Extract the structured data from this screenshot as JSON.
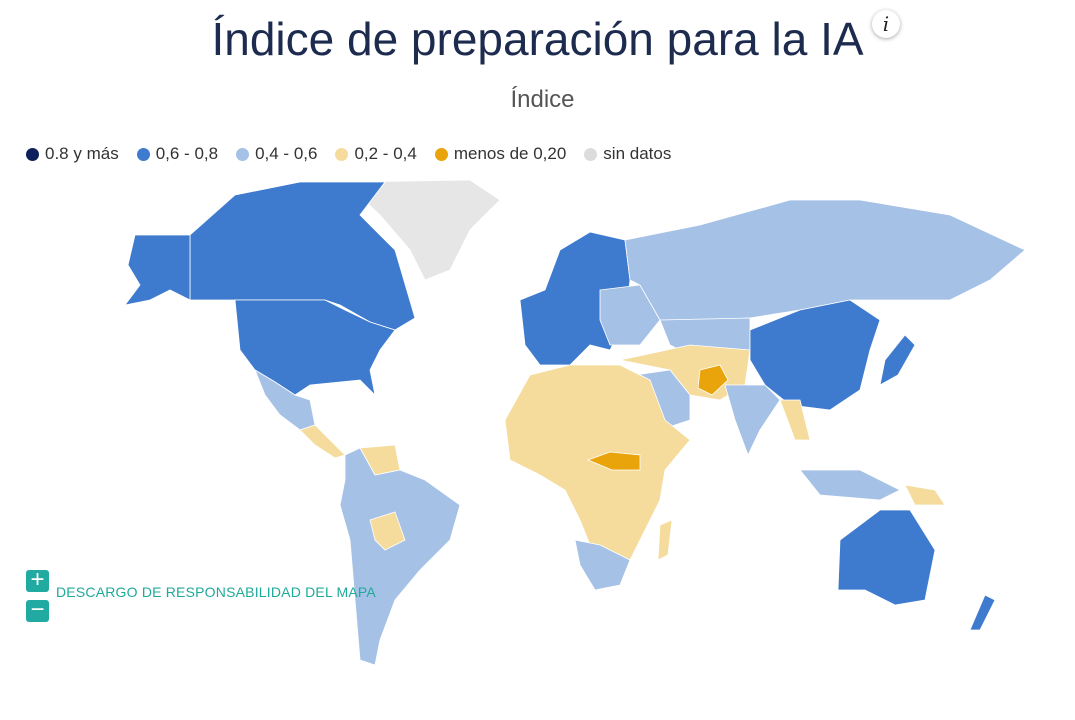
{
  "header": {
    "title": "Índice de preparación para la IA",
    "info_icon": "i",
    "subtitle": "Índice"
  },
  "legend": [
    {
      "label": "0.8 y más",
      "color": "#0e1f5b"
    },
    {
      "label": "0,6 - 0,8",
      "color": "#3e7bce"
    },
    {
      "label": "0,4 - 0,6",
      "color": "#a6c1e6"
    },
    {
      "label": "0,2 - 0,4",
      "color": "#f6dc9c"
    },
    {
      "label": "menos de 0,20",
      "color": "#e9a40c"
    },
    {
      "label": "sin datos",
      "color": "#dcdcdc"
    }
  ],
  "map": {
    "disclaimer": "DESCARGO DE RESPONSABILIDAD DEL MAPA",
    "zoom_in": "+",
    "zoom_out": "−"
  }
}
